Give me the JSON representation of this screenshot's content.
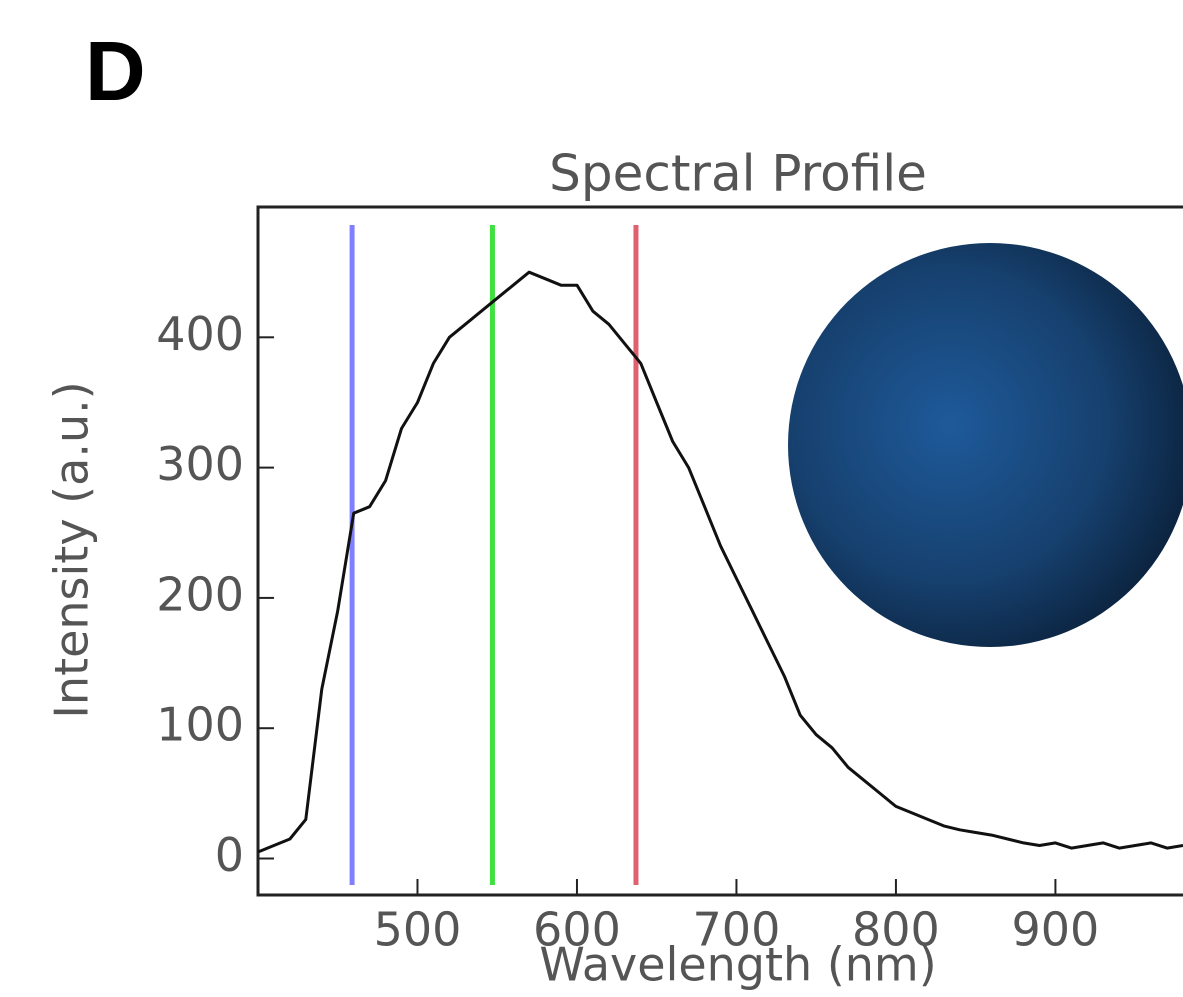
{
  "panel_label": "D",
  "chart_data": {
    "type": "line",
    "title": "Spectral Profile",
    "x_label": "Wavelength (nm)",
    "y_label": "Intensity (a.u.)",
    "x": [
      400,
      410,
      420,
      430,
      440,
      450,
      460,
      470,
      480,
      490,
      500,
      510,
      520,
      530,
      540,
      550,
      560,
      570,
      580,
      590,
      600,
      610,
      620,
      630,
      640,
      650,
      660,
      670,
      680,
      690,
      700,
      710,
      720,
      730,
      740,
      750,
      760,
      770,
      780,
      790,
      800,
      810,
      820,
      830,
      840,
      850,
      860,
      870,
      880,
      890,
      900,
      910,
      920,
      930,
      940,
      950,
      960,
      970,
      980
    ],
    "series": [
      {
        "color": "#111111",
        "values": [
          5,
          10,
          15,
          30,
          130,
          190,
          265,
          270,
          290,
          330,
          350,
          380,
          400,
          410,
          420,
          430,
          440,
          450,
          445,
          440,
          440,
          420,
          410,
          395,
          380,
          350,
          320,
          300,
          270,
          240,
          215,
          190,
          165,
          140,
          110,
          95,
          85,
          70,
          60,
          50,
          40,
          35,
          30,
          25,
          22,
          20,
          18,
          15,
          12,
          10,
          12,
          8,
          10,
          12,
          8,
          10,
          12,
          8,
          10
        ]
      }
    ],
    "vlines": [
      {
        "x": 459,
        "color": "#8080ff"
      },
      {
        "x": 547,
        "color": "#40e040"
      },
      {
        "x": 637,
        "color": "#e06070"
      }
    ],
    "xlim": [
      400,
      980
    ],
    "ylim": [
      -28,
      500
    ],
    "xticks": [
      500,
      600,
      700,
      800,
      900
    ],
    "yticks": [
      0,
      100,
      200,
      300,
      400
    ]
  }
}
